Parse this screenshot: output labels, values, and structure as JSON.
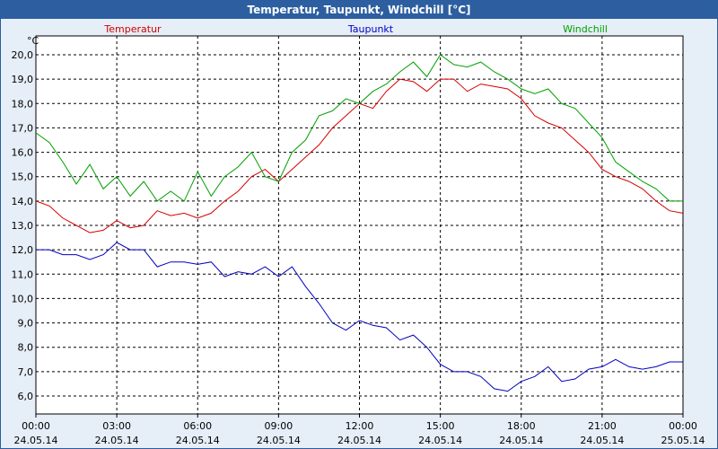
{
  "title": "Temperatur, Taupunkt, Windchill [°C]",
  "colors": {
    "Temperatur": "#d40000",
    "Taupunkt": "#0000c0",
    "Windchill": "#00a000"
  },
  "chart_data": {
    "type": "line",
    "title": "Temperatur, Taupunkt, Windchill [°C]",
    "ylabel": "°C",
    "ylim": [
      5.5,
      20.5
    ],
    "yticks": [
      "6,0",
      "7,0",
      "8,0",
      "9,0",
      "10,0",
      "11,0",
      "12,0",
      "13,0",
      "14,0",
      "15,0",
      "16,0",
      "17,0",
      "18,0",
      "19,0",
      "20,0"
    ],
    "ytick_values": [
      6,
      7,
      8,
      9,
      10,
      11,
      12,
      13,
      14,
      15,
      16,
      17,
      18,
      19,
      20
    ],
    "xlim": [
      0,
      24
    ],
    "xtick_values": [
      0,
      3,
      6,
      9,
      12,
      15,
      18,
      21,
      24
    ],
    "xtick_times": [
      "00:00",
      "03:00",
      "06:00",
      "09:00",
      "12:00",
      "15:00",
      "18:00",
      "21:00",
      "00:00"
    ],
    "xtick_dates": [
      "24.05.14",
      "24.05.14",
      "24.05.14",
      "24.05.14",
      "24.05.14",
      "24.05.14",
      "24.05.14",
      "24.05.14",
      "25.05.14"
    ],
    "grid": true,
    "legend_position": "top",
    "series": [
      {
        "name": "Temperatur",
        "x": [
          0,
          0.5,
          1,
          1.5,
          2,
          2.5,
          3,
          3.5,
          4,
          4.5,
          5,
          5.5,
          6,
          6.5,
          7,
          7.5,
          8,
          8.5,
          9,
          9.5,
          10,
          10.5,
          11,
          11.5,
          12,
          12.5,
          13,
          13.5,
          14,
          14.5,
          15,
          15.5,
          16,
          16.5,
          17,
          17.5,
          18,
          18.5,
          19,
          19.5,
          20,
          20.5,
          21,
          21.5,
          22,
          22.5,
          23,
          23.5,
          24
        ],
        "y": [
          14.0,
          13.8,
          13.3,
          13.0,
          12.7,
          12.8,
          13.2,
          12.9,
          13.0,
          13.6,
          13.4,
          13.5,
          13.3,
          13.5,
          14.0,
          14.4,
          15.0,
          15.3,
          14.8,
          15.3,
          15.8,
          16.3,
          17.0,
          17.5,
          18.0,
          17.8,
          18.5,
          19.0,
          18.9,
          18.5,
          19.0,
          19.0,
          18.5,
          18.8,
          18.7,
          18.6,
          18.2,
          17.5,
          17.2,
          17.0,
          16.5,
          16.0,
          15.3,
          15.0,
          14.8,
          14.5,
          14.0,
          13.6,
          13.5
        ]
      },
      {
        "name": "Taupunkt",
        "x": [
          0,
          0.5,
          1,
          1.5,
          2,
          2.5,
          3,
          3.5,
          4,
          4.5,
          5,
          5.5,
          6,
          6.5,
          7,
          7.5,
          8,
          8.5,
          9,
          9.5,
          10,
          10.5,
          11,
          11.5,
          12,
          12.5,
          13,
          13.5,
          14,
          14.5,
          15,
          15.5,
          16,
          16.5,
          17,
          17.5,
          18,
          18.5,
          19,
          19.5,
          20,
          20.5,
          21,
          21.5,
          22,
          22.5,
          23,
          23.5,
          24
        ],
        "y": [
          12.0,
          12.0,
          11.8,
          11.8,
          11.6,
          11.8,
          12.3,
          12.0,
          12.0,
          11.3,
          11.5,
          11.5,
          11.4,
          11.5,
          10.9,
          11.1,
          11.0,
          11.3,
          10.9,
          11.3,
          10.5,
          9.8,
          9.0,
          8.7,
          9.1,
          8.9,
          8.8,
          8.3,
          8.5,
          8.0,
          7.3,
          7.0,
          7.0,
          6.8,
          6.3,
          6.2,
          6.6,
          6.8,
          7.2,
          6.6,
          6.7,
          7.1,
          7.2,
          7.5,
          7.2,
          7.1,
          7.2,
          7.4,
          7.4
        ]
      },
      {
        "name": "Windchill",
        "x": [
          0,
          0.5,
          1,
          1.5,
          2,
          2.5,
          3,
          3.5,
          4,
          4.5,
          5,
          5.5,
          6,
          6.5,
          7,
          7.5,
          8,
          8.5,
          9,
          9.5,
          10,
          10.5,
          11,
          11.5,
          12,
          12.5,
          13,
          13.5,
          14,
          14.5,
          15,
          15.5,
          16,
          16.5,
          17,
          17.5,
          18,
          18.5,
          19,
          19.5,
          20,
          20.5,
          21,
          21.5,
          22,
          22.5,
          23,
          23.5,
          24
        ],
        "y": [
          16.8,
          16.4,
          15.6,
          14.7,
          15.5,
          14.5,
          15.0,
          14.2,
          14.8,
          14.0,
          14.4,
          14.0,
          15.2,
          14.2,
          15.0,
          15.4,
          16.0,
          15.0,
          14.8,
          16.0,
          16.5,
          17.5,
          17.7,
          18.2,
          18.0,
          18.5,
          18.8,
          19.3,
          19.7,
          19.1,
          20.0,
          19.6,
          19.5,
          19.7,
          19.3,
          19.0,
          18.6,
          18.4,
          18.6,
          18.0,
          17.8,
          17.2,
          16.6,
          15.6,
          15.2,
          14.8,
          14.5,
          14.0,
          14.0
        ]
      }
    ]
  }
}
